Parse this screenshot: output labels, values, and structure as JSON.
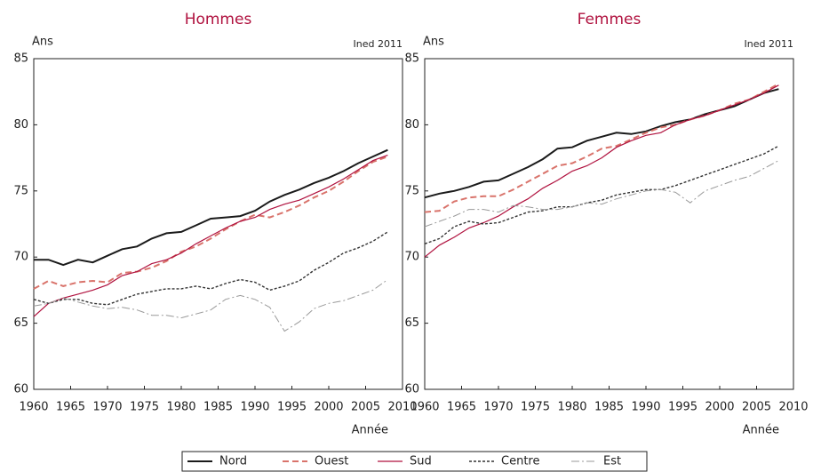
{
  "chart_data": [
    {
      "type": "line",
      "title": "Hommes",
      "ylabel": "Ans",
      "source": "Ined 2011",
      "xlabel": "Année",
      "x": [
        1960,
        1962,
        1964,
        1966,
        1968,
        1970,
        1972,
        1974,
        1976,
        1978,
        1980,
        1982,
        1984,
        1986,
        1988,
        1990,
        1992,
        1994,
        1996,
        1998,
        2000,
        2002,
        2004,
        2006,
        2008
      ],
      "xlim": [
        1960,
        2010
      ],
      "ylim": [
        60,
        85
      ],
      "xticks": [
        1960,
        1965,
        1970,
        1975,
        1980,
        1985,
        1990,
        1995,
        2000,
        2005,
        2010
      ],
      "yticks": [
        60,
        65,
        70,
        75,
        80,
        85
      ],
      "series": [
        {
          "name": "Nord",
          "color": "#1a1a1a",
          "dash": "solid",
          "values": [
            69.8,
            69.8,
            69.4,
            69.8,
            69.6,
            70.1,
            70.6,
            70.8,
            71.4,
            71.8,
            71.9,
            72.4,
            72.9,
            73.0,
            73.1,
            73.5,
            74.2,
            74.7,
            75.1,
            75.6,
            76.0,
            76.5,
            77.1,
            77.6,
            78.1
          ]
        },
        {
          "name": "Ouest",
          "color": "#d9736b",
          "dash": "dashed",
          "values": [
            67.6,
            68.2,
            67.8,
            68.1,
            68.2,
            68.1,
            68.8,
            68.9,
            69.2,
            69.7,
            70.4,
            70.8,
            71.4,
            72.1,
            72.7,
            73.2,
            73.0,
            73.4,
            73.9,
            74.5,
            75.0,
            75.7,
            76.5,
            77.2,
            77.6
          ]
        },
        {
          "name": "Sud",
          "color": "#b0123f",
          "dash": "solid",
          "values": [
            65.5,
            66.5,
            66.9,
            67.2,
            67.5,
            67.9,
            68.6,
            68.9,
            69.5,
            69.8,
            70.3,
            71.0,
            71.6,
            72.2,
            72.7,
            73.0,
            73.6,
            74.0,
            74.3,
            74.8,
            75.3,
            75.9,
            76.6,
            77.3,
            77.7
          ]
        },
        {
          "name": "Centre",
          "color": "#333333",
          "dash": "dotted",
          "values": [
            66.8,
            66.5,
            66.8,
            66.8,
            66.5,
            66.4,
            66.8,
            67.2,
            67.4,
            67.6,
            67.6,
            67.8,
            67.6,
            68.0,
            68.3,
            68.1,
            67.5,
            67.8,
            68.2,
            69.0,
            69.6,
            70.3,
            70.7,
            71.2,
            71.9
          ]
        },
        {
          "name": "Est",
          "color": "#999999",
          "dash": "dashdot",
          "values": [
            66.3,
            66.5,
            66.9,
            66.6,
            66.3,
            66.1,
            66.2,
            66.0,
            65.6,
            65.6,
            65.4,
            65.7,
            66.0,
            66.8,
            67.1,
            66.8,
            66.2,
            64.4,
            65.1,
            66.1,
            66.5,
            66.7,
            67.1,
            67.5,
            68.3
          ]
        }
      ]
    },
    {
      "type": "line",
      "title": "Femmes",
      "ylabel": "Ans",
      "source": "Ined 2011",
      "xlabel": "Année",
      "x": [
        1960,
        1962,
        1964,
        1966,
        1968,
        1970,
        1972,
        1974,
        1976,
        1978,
        1980,
        1982,
        1984,
        1986,
        1988,
        1990,
        1992,
        1994,
        1996,
        1998,
        2000,
        2002,
        2004,
        2006,
        2008
      ],
      "xlim": [
        1960,
        2010
      ],
      "ylim": [
        60,
        85
      ],
      "xticks": [
        1960,
        1965,
        1970,
        1975,
        1980,
        1985,
        1990,
        1995,
        2000,
        2005,
        2010
      ],
      "yticks": [
        60,
        65,
        70,
        75,
        80,
        85
      ],
      "series": [
        {
          "color": "#1a1a1a",
          "dash": "solid",
          "values": [
            74.5,
            74.8,
            75.0,
            75.3,
            75.7,
            75.8,
            76.3,
            76.8,
            77.4,
            78.2,
            78.3,
            78.8,
            79.1,
            79.4,
            79.3,
            79.5,
            79.9,
            80.2,
            80.4,
            80.8,
            81.1,
            81.4,
            81.9,
            82.4,
            82.7
          ]
        },
        {
          "color": "#d9736b",
          "dash": "dashed",
          "values": [
            73.4,
            73.5,
            74.2,
            74.5,
            74.6,
            74.6,
            75.1,
            75.7,
            76.3,
            76.9,
            77.1,
            77.6,
            78.2,
            78.4,
            78.9,
            79.4,
            79.8,
            80.0,
            80.4,
            80.7,
            81.1,
            81.6,
            81.9,
            82.5,
            83.1
          ]
        },
        {
          "color": "#b0123f",
          "dash": "solid",
          "values": [
            70.0,
            70.9,
            71.5,
            72.2,
            72.6,
            73.1,
            73.8,
            74.4,
            75.2,
            75.8,
            76.5,
            76.9,
            77.5,
            78.3,
            78.8,
            79.2,
            79.4,
            80.0,
            80.4,
            80.7,
            81.1,
            81.5,
            81.9,
            82.4,
            83.0
          ]
        },
        {
          "color": "#333333",
          "dash": "dotted",
          "values": [
            71.0,
            71.4,
            72.3,
            72.7,
            72.5,
            72.6,
            73.0,
            73.4,
            73.5,
            73.8,
            73.8,
            74.1,
            74.3,
            74.7,
            74.9,
            75.1,
            75.1,
            75.4,
            75.8,
            76.2,
            76.6,
            77.0,
            77.4,
            77.8,
            78.4
          ]
        },
        {
          "color": "#999999",
          "dash": "dashdot",
          "values": [
            72.3,
            72.7,
            73.1,
            73.6,
            73.6,
            73.4,
            73.9,
            73.8,
            73.6,
            73.6,
            73.8,
            74.1,
            74.0,
            74.4,
            74.7,
            75.0,
            75.1,
            74.9,
            74.1,
            75.0,
            75.4,
            75.8,
            76.1,
            76.7,
            77.3
          ]
        }
      ]
    }
  ]
}
